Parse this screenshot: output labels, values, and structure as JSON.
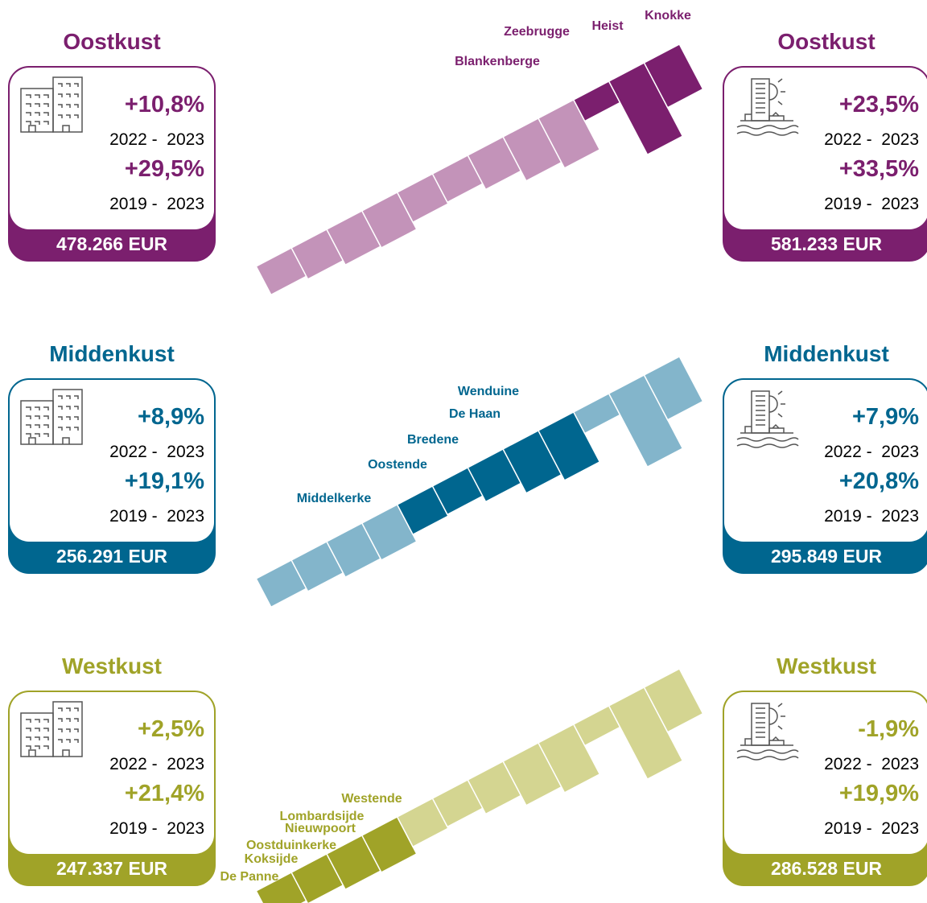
{
  "rows": [
    {
      "color": "#7b1f6e",
      "light": "#c393b9",
      "left": {
        "title": "Oostkust",
        "change1": "+10,8%",
        "period1": "2022 -  2023",
        "change2": "+29,5%",
        "period2": "2019 -  2023",
        "price": "478.266 EUR"
      },
      "right": {
        "title": "Oostkust",
        "change1": "+23,5%",
        "period1": "2022 -  2023",
        "change2": "+33,5%",
        "period2": "2019 -  2023",
        "price": "581.233 EUR"
      },
      "labels": [
        "Zeebrugge",
        "Heist",
        "Knokke",
        "Blankenberge"
      ]
    },
    {
      "color": "#00668f",
      "light": "#83b5cb",
      "left": {
        "title": "Middenkust",
        "change1": "+8,9%",
        "period1": "2022 -  2023",
        "change2": "+19,1%",
        "period2": "2019 -  2023",
        "price": "256.291 EUR"
      },
      "right": {
        "title": "Middenkust",
        "change1": "+7,9%",
        "period1": "2022 -  2023",
        "change2": "+20,8%",
        "period2": "2019 -  2023",
        "price": "295.849 EUR"
      },
      "labels": [
        "Wenduine",
        "De Haan",
        "Bredene",
        "Oostende",
        "Middelkerke"
      ]
    },
    {
      "color": "#a0a328",
      "light": "#d4d591",
      "left": {
        "title": "Westkust",
        "change1": "+2,5%",
        "period1": "2022 -  2023",
        "change2": "+21,4%",
        "period2": "2019 -  2023",
        "price": "247.337 EUR"
      },
      "right": {
        "title": "Westkust",
        "change1": "-1,9%",
        "period1": "2022 -  2023",
        "change2": "+19,9%",
        "period2": "2019 -  2023",
        "price": "286.528 EUR"
      },
      "labels": [
        "Westende",
        "Lombardsijde",
        "Nieuwpoort",
        "Oostduinkerke",
        "Koksijde",
        "De Panne"
      ]
    }
  ]
}
